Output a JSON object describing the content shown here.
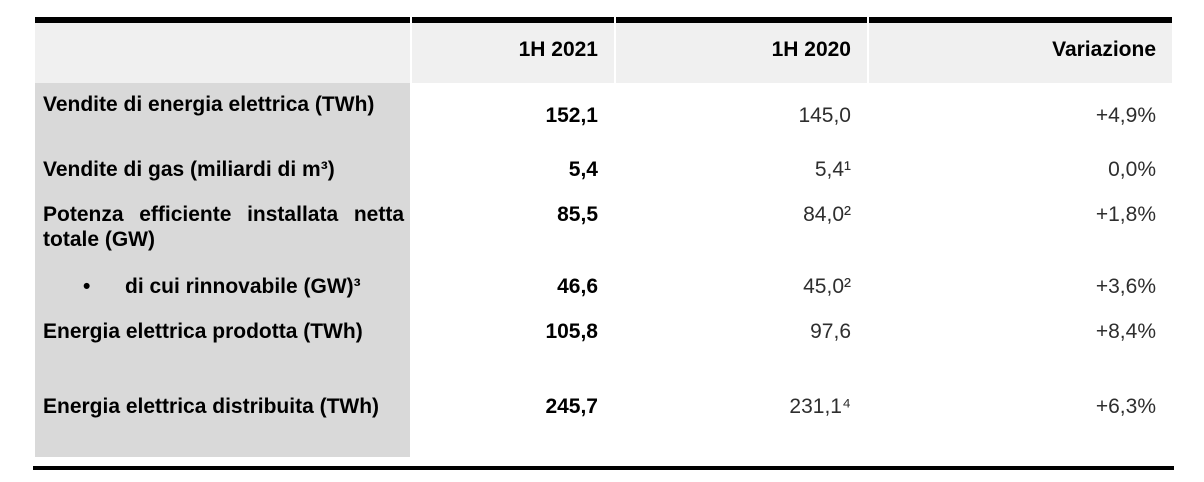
{
  "table": {
    "columns": [
      "",
      "1H 2021",
      "1H 2020",
      "Variazione"
    ],
    "bullet_glyph": "•",
    "rows": [
      {
        "label": "Vendite di energia elettrica (TWh)",
        "h1_2021": "152,1",
        "h1_2020": "145,0",
        "variazione": "+4,9%"
      },
      {
        "label": "Vendite di gas (miliardi di m³)",
        "h1_2021": "5,4",
        "h1_2020": "5,4¹",
        "variazione": "0,0%"
      },
      {
        "label": "Potenza efficiente installata netta totale (GW)",
        "h1_2021": "85,5",
        "h1_2020": "84,0²",
        "variazione": "+1,8%"
      },
      {
        "label": "di cui rinnovabile (GW)³",
        "h1_2021": "46,6",
        "h1_2020": "45,0²",
        "variazione": "+3,6%"
      },
      {
        "label": "Energia elettrica prodotta (TWh)",
        "h1_2021": "105,8",
        "h1_2020": "97,6",
        "variazione": "+8,4%"
      },
      {
        "label": "Energia elettrica distribuita (TWh)",
        "h1_2021": "245,7",
        "h1_2020": "231,1⁴",
        "variazione": "+6,3%"
      }
    ]
  },
  "colors": {
    "header_bg": "#f0f0f0",
    "label_column_bg": "#d9d9d9",
    "rule": "#000000"
  }
}
